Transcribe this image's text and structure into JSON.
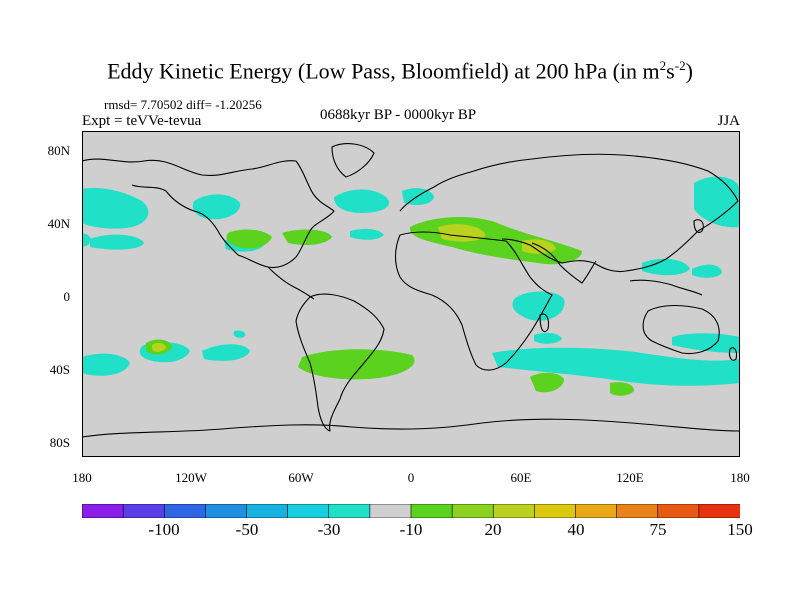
{
  "title": {
    "main": "Eddy Kinetic Energy (Low Pass, Bloomfield) at 200 hPa (in m",
    "sup1": "2",
    "mid": "s",
    "sup2": "-2",
    "end": ")"
  },
  "stats": "rmsd= 7.70502  diff= -1.20256",
  "experiment": "Expt = teVVe-tevua",
  "period": "0688kyr BP - 0000kyr BP",
  "season": "JJA",
  "axes": {
    "lat_ticks": [
      "80N",
      "40N",
      "0",
      "40S",
      "80S"
    ],
    "lon_ticks": [
      "180",
      "120W",
      "60W",
      "0",
      "60E",
      "120E",
      "180"
    ]
  },
  "colorbar": {
    "colors": [
      "#8b1ee8",
      "#5a3fe8",
      "#2f66e6",
      "#1f90e0",
      "#17b2e0",
      "#17cfe0",
      "#20e0c8",
      "#cfcfcf",
      "#5ad21e",
      "#8ad21e",
      "#b8d21e",
      "#dcc80f",
      "#e8a818",
      "#e8821a",
      "#e85a14",
      "#e8320f"
    ],
    "labels": [
      "-100",
      "-50",
      "-30",
      "-10",
      "20",
      "40",
      "75",
      "150"
    ]
  },
  "palette": {
    "land_bg": "#cfcfcf",
    "cyan": "#20e0c8",
    "green": "#5ad21e",
    "yellowgreen": "#b8d21e",
    "coast": "#000000"
  }
}
